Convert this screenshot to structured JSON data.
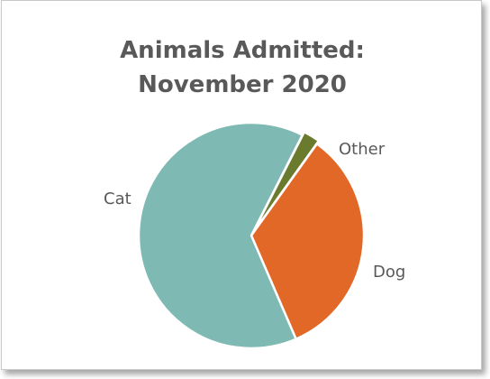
{
  "chart_data": {
    "type": "pie",
    "title_lines": [
      "Animals Admitted:",
      "November 2020"
    ],
    "categories": [
      "Other",
      "Dog",
      "Cat"
    ],
    "values": [
      2.4,
      33.6,
      64.0
    ],
    "colors": [
      "#6b7b2e",
      "#e26828",
      "#7eb9b3"
    ],
    "legend": "none",
    "data_labels": "category name outside"
  }
}
